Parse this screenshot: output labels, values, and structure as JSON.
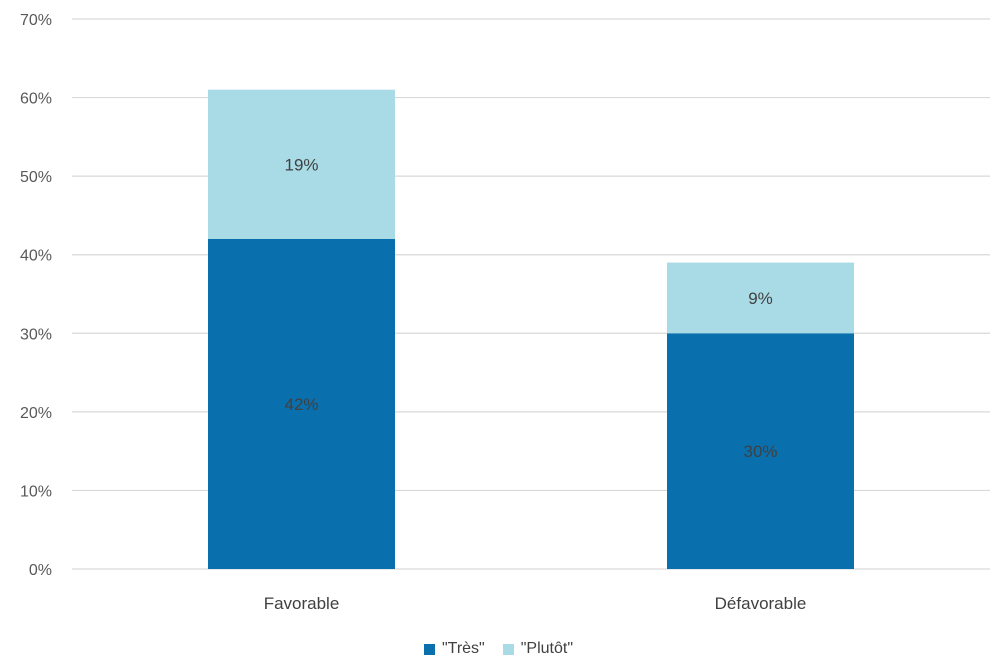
{
  "chart_data": {
    "type": "bar",
    "stacked": true,
    "categories": [
      "Favorable",
      "Défavorable"
    ],
    "series": [
      {
        "name": "\"Très\"",
        "values": [
          42,
          30
        ],
        "labels": [
          "42%",
          "30%"
        ],
        "color": "#0a6fad"
      },
      {
        "name": "\"Plutôt\"",
        "values": [
          19,
          9
        ],
        "labels": [
          "19%",
          "9%"
        ],
        "color": "#a9dbe7"
      }
    ],
    "ylim": [
      0,
      70
    ],
    "yticks": [
      0,
      10,
      20,
      30,
      40,
      50,
      60,
      70
    ],
    "ytick_labels": [
      "0%",
      "10%",
      "20%",
      "30%",
      "40%",
      "50%",
      "60%",
      "70%"
    ],
    "grid": true,
    "legend_position": "bottom",
    "gridline_color": "#d9d9d9"
  }
}
